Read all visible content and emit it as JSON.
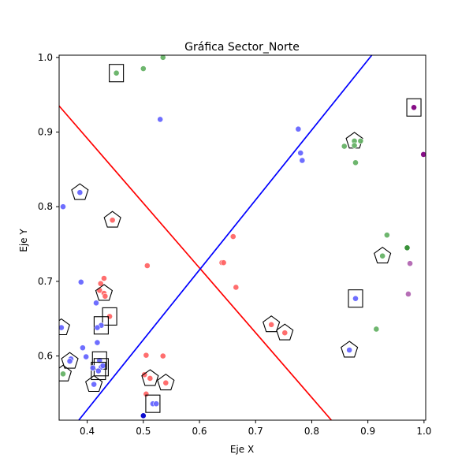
{
  "chart_data": {
    "type": "scatter",
    "title": "Gráfica Sector_Norte",
    "xlabel": "Eje X",
    "ylabel": "Eje Y",
    "xlim": [
      0.35,
      1.003
    ],
    "ylim": [
      0.514,
      1.003
    ],
    "xticks": [
      0.4,
      0.5,
      0.6,
      0.7,
      0.8,
      0.9,
      1.0
    ],
    "yticks": [
      0.6,
      0.7,
      0.8,
      0.9,
      1.0
    ],
    "grid": false,
    "colors": {
      "red": "#ff6666",
      "blue": "#6666ff",
      "green": "#66b266",
      "purple": "#b266b2",
      "dark_green": "#2e8b2e",
      "dark_blue": "#0000cc",
      "dark_purple": "#800080",
      "line_red": "#ff0000",
      "line_blue": "#0000ff",
      "marker_outline": "#000000"
    },
    "lines": [
      {
        "color": "line_red",
        "points": [
          [
            0.35,
            0.935
          ],
          [
            0.835,
            0.514
          ]
        ]
      },
      {
        "color": "line_blue",
        "points": [
          [
            0.385,
            0.514
          ],
          [
            0.907,
            1.003
          ]
        ]
      }
    ],
    "points": [
      {
        "x": 0.452,
        "y": 0.979,
        "c": "green",
        "m": "square"
      },
      {
        "x": 0.5,
        "y": 0.985,
        "c": "green"
      },
      {
        "x": 0.535,
        "y": 1.0,
        "c": "green"
      },
      {
        "x": 0.53,
        "y": 0.917,
        "c": "blue"
      },
      {
        "x": 0.776,
        "y": 0.904,
        "c": "blue"
      },
      {
        "x": 0.78,
        "y": 0.872,
        "c": "blue"
      },
      {
        "x": 0.783,
        "y": 0.862,
        "c": "blue"
      },
      {
        "x": 0.858,
        "y": 0.881,
        "c": "green"
      },
      {
        "x": 0.876,
        "y": 0.888,
        "c": "green",
        "m": "pentagon"
      },
      {
        "x": 0.876,
        "y": 0.882,
        "c": "green"
      },
      {
        "x": 0.887,
        "y": 0.888,
        "c": "green"
      },
      {
        "x": 0.878,
        "y": 0.859,
        "c": "green"
      },
      {
        "x": 0.982,
        "y": 0.933,
        "c": "dark_purple",
        "m": "square"
      },
      {
        "x": 0.999,
        "y": 0.87,
        "c": "dark_purple"
      },
      {
        "x": 0.387,
        "y": 0.819,
        "c": "blue",
        "m": "pentagon"
      },
      {
        "x": 0.357,
        "y": 0.8,
        "c": "blue"
      },
      {
        "x": 0.445,
        "y": 0.782,
        "c": "red",
        "m": "pentagon"
      },
      {
        "x": 0.66,
        "y": 0.76,
        "c": "red"
      },
      {
        "x": 0.934,
        "y": 0.762,
        "c": "green"
      },
      {
        "x": 0.97,
        "y": 0.745,
        "c": "dark_green"
      },
      {
        "x": 0.926,
        "y": 0.734,
        "c": "green",
        "m": "pentagon"
      },
      {
        "x": 0.975,
        "y": 0.724,
        "c": "purple"
      },
      {
        "x": 0.972,
        "y": 0.683,
        "c": "purple"
      },
      {
        "x": 0.64,
        "y": 0.725,
        "c": "red"
      },
      {
        "x": 0.643,
        "y": 0.725,
        "c": "red"
      },
      {
        "x": 0.507,
        "y": 0.721,
        "c": "red"
      },
      {
        "x": 0.665,
        "y": 0.692,
        "c": "red"
      },
      {
        "x": 0.389,
        "y": 0.699,
        "c": "blue"
      },
      {
        "x": 0.43,
        "y": 0.704,
        "c": "red"
      },
      {
        "x": 0.424,
        "y": 0.697,
        "c": "red"
      },
      {
        "x": 0.422,
        "y": 0.688,
        "c": "red"
      },
      {
        "x": 0.43,
        "y": 0.684,
        "c": "red",
        "m": "pentagon"
      },
      {
        "x": 0.432,
        "y": 0.68,
        "c": "red"
      },
      {
        "x": 0.416,
        "y": 0.671,
        "c": "blue"
      },
      {
        "x": 0.878,
        "y": 0.677,
        "c": "blue",
        "m": "square"
      },
      {
        "x": 0.44,
        "y": 0.653,
        "c": "red",
        "m": "square"
      },
      {
        "x": 0.425,
        "y": 0.641,
        "c": "blue",
        "m": "square"
      },
      {
        "x": 0.418,
        "y": 0.638,
        "c": "blue"
      },
      {
        "x": 0.354,
        "y": 0.638,
        "c": "blue",
        "m": "pentagon"
      },
      {
        "x": 0.728,
        "y": 0.642,
        "c": "red",
        "m": "pentagon"
      },
      {
        "x": 0.752,
        "y": 0.631,
        "c": "red",
        "m": "pentagon"
      },
      {
        "x": 0.915,
        "y": 0.636,
        "c": "green"
      },
      {
        "x": 0.418,
        "y": 0.618,
        "c": "blue"
      },
      {
        "x": 0.392,
        "y": 0.611,
        "c": "blue"
      },
      {
        "x": 0.867,
        "y": 0.608,
        "c": "blue",
        "m": "pentagon"
      },
      {
        "x": 0.398,
        "y": 0.599,
        "c": "blue"
      },
      {
        "x": 0.371,
        "y": 0.596,
        "c": "blue"
      },
      {
        "x": 0.369,
        "y": 0.593,
        "c": "blue",
        "m": "pentagon"
      },
      {
        "x": 0.422,
        "y": 0.594,
        "c": "blue",
        "m": "square"
      },
      {
        "x": 0.425,
        "y": 0.585,
        "c": "blue",
        "m": "square"
      },
      {
        "x": 0.428,
        "y": 0.587,
        "c": "blue"
      },
      {
        "x": 0.42,
        "y": 0.58,
        "c": "blue",
        "m": "square"
      },
      {
        "x": 0.41,
        "y": 0.584,
        "c": "blue"
      },
      {
        "x": 0.505,
        "y": 0.601,
        "c": "red"
      },
      {
        "x": 0.535,
        "y": 0.6,
        "c": "red"
      },
      {
        "x": 0.502,
        "y": 0.575,
        "c": "red"
      },
      {
        "x": 0.512,
        "y": 0.57,
        "c": "red",
        "m": "pentagon"
      },
      {
        "x": 0.54,
        "y": 0.564,
        "c": "red",
        "m": "pentagon"
      },
      {
        "x": 0.357,
        "y": 0.576,
        "c": "green",
        "m": "pentagon"
      },
      {
        "x": 0.412,
        "y": 0.562,
        "c": "blue",
        "m": "pentagon"
      },
      {
        "x": 0.505,
        "y": 0.549,
        "c": "red"
      },
      {
        "x": 0.517,
        "y": 0.536,
        "c": "blue",
        "m": "square"
      },
      {
        "x": 0.523,
        "y": 0.536,
        "c": "blue"
      },
      {
        "x": 0.5,
        "y": 0.52,
        "c": "dark_blue"
      }
    ]
  }
}
